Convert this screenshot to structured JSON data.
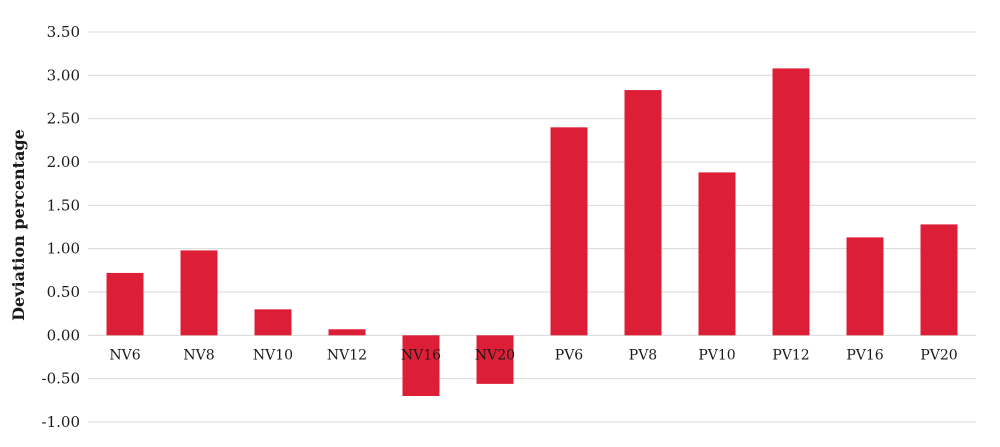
{
  "chart_data": {
    "type": "bar",
    "title": "",
    "xlabel": "",
    "ylabel": "Deviation percentage",
    "categories": [
      "NV6",
      "NV8",
      "NV10",
      "NV12",
      "NV16",
      "NV20",
      "PV6",
      "PV8",
      "PV10",
      "PV12",
      "PV16",
      "PV20"
    ],
    "values": [
      0.72,
      0.98,
      0.3,
      0.07,
      -0.7,
      -0.56,
      2.4,
      2.83,
      1.88,
      3.08,
      1.13,
      1.28
    ],
    "ylim": [
      -1.0,
      3.5
    ],
    "yticks": [
      "3.50",
      "3.00",
      "2.50",
      "2.00",
      "1.50",
      "1.00",
      "0.50",
      "0.00",
      "-0.50",
      "-1.00"
    ],
    "ytick_values": [
      3.5,
      3.0,
      2.5,
      2.0,
      1.5,
      1.0,
      0.5,
      0.0,
      -0.5,
      -1.0
    ],
    "grid": true,
    "legend": "none",
    "bar_color": "#dc1f37",
    "grid_color": "#d9d9d9"
  }
}
